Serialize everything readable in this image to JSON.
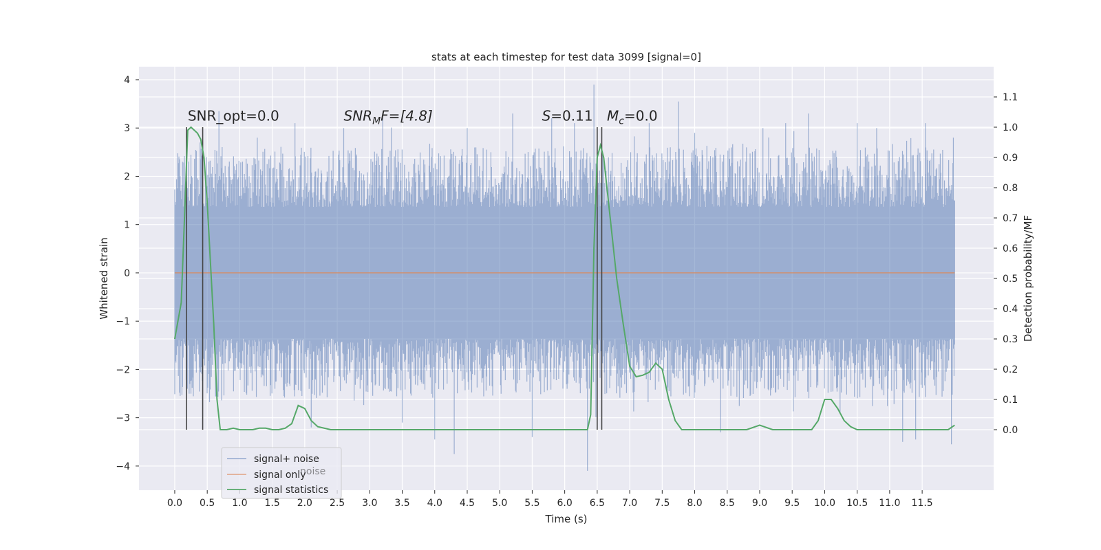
{
  "chart_data": {
    "type": "line",
    "title": "stats at each timestep for test data 3099 [signal=0]",
    "xlabel": "Time (s)",
    "ylabel_left": "Whitened strain",
    "ylabel_right": "Detection probability/MF",
    "xlim": [
      -0.55,
      12.6
    ],
    "ylim_left": [
      -4.5,
      4.27
    ],
    "ylim_right": [
      -0.2,
      1.2
    ],
    "x_ticks": [
      0.0,
      0.5,
      1.0,
      1.5,
      2.0,
      2.5,
      3.0,
      3.5,
      4.0,
      4.5,
      5.0,
      5.5,
      6.0,
      6.5,
      7.0,
      7.5,
      8.0,
      8.5,
      9.0,
      9.5,
      10.0,
      10.5,
      11.0,
      11.5
    ],
    "x_tick_labels": [
      "0.0",
      "0.5",
      "1.0",
      "1.5",
      "2.0",
      "2.5",
      "3.0",
      "3.5",
      "4.0",
      "4.5",
      "5.0",
      "5.5",
      "6.0",
      "6.5",
      "7.0",
      "7.5",
      "8.0",
      "8.5",
      "9.0",
      "9.5",
      "10.0",
      "10.5",
      "11.0",
      "11.5"
    ],
    "y_ticks_left": [
      -4,
      -3,
      -2,
      -1,
      0,
      1,
      2,
      3,
      4
    ],
    "y_tick_labels_left": [
      "−4",
      "−3",
      "−2",
      "−1",
      "0",
      "1",
      "2",
      "3",
      "4"
    ],
    "y_ticks_right": [
      0.0,
      0.1,
      0.2,
      0.3,
      0.4,
      0.5,
      0.6,
      0.7,
      0.8,
      0.9,
      1.0,
      1.1
    ],
    "y_tick_labels_right": [
      "0.0",
      "0.1",
      "0.2",
      "0.3",
      "0.4",
      "0.5",
      "0.6",
      "0.7",
      "0.8",
      "0.9",
      "1.0",
      "1.1"
    ],
    "grid": true,
    "legend_position": "bottom-left",
    "series": [
      {
        "name": "signal+ noise",
        "axis": "left",
        "color": "#4c72b0",
        "style": "noise-band",
        "x_range": [
          0.0,
          12.0
        ],
        "typical_amplitude": 1.3,
        "peaks": [
          {
            "x": 0.39,
            "y": 2.7
          },
          {
            "x": 0.68,
            "y": 3.35
          },
          {
            "x": 1.27,
            "y": 2.8
          },
          {
            "x": 1.85,
            "y": 3.1
          },
          {
            "x": 2.1,
            "y": -3.2
          },
          {
            "x": 2.6,
            "y": 3.0
          },
          {
            "x": 3.2,
            "y": 3.2
          },
          {
            "x": 3.5,
            "y": -3.1
          },
          {
            "x": 4.0,
            "y": -3.45
          },
          {
            "x": 4.3,
            "y": -3.75
          },
          {
            "x": 4.5,
            "y": 3.0
          },
          {
            "x": 5.2,
            "y": 3.3
          },
          {
            "x": 5.5,
            "y": -3.4
          },
          {
            "x": 5.8,
            "y": 3.2
          },
          {
            "x": 6.15,
            "y": 3.1
          },
          {
            "x": 6.35,
            "y": -4.1
          },
          {
            "x": 6.45,
            "y": 3.9
          },
          {
            "x": 7.3,
            "y": 3.1
          },
          {
            "x": 7.75,
            "y": 3.55
          },
          {
            "x": 8.0,
            "y": 2.9
          },
          {
            "x": 8.4,
            "y": -3.3
          },
          {
            "x": 9.05,
            "y": 3.0
          },
          {
            "x": 9.4,
            "y": 3.1
          },
          {
            "x": 9.75,
            "y": 3.3
          },
          {
            "x": 10.5,
            "y": 3.1
          },
          {
            "x": 10.8,
            "y": 3.0
          },
          {
            "x": 11.2,
            "y": -3.5
          },
          {
            "x": 11.4,
            "y": -3.45
          },
          {
            "x": 11.55,
            "y": 3.1
          },
          {
            "x": 11.95,
            "y": -3.55
          },
          {
            "x": 11.98,
            "y": 2.8
          }
        ]
      },
      {
        "name": "signal only",
        "axis": "left",
        "color": "#dd8452",
        "x": [
          0.0,
          12.0
        ],
        "y": [
          0.0,
          0.0
        ]
      },
      {
        "name": "signal statistics",
        "axis": "right",
        "color": "#55a868",
        "x": [
          0.0,
          0.1,
          0.15,
          0.2,
          0.25,
          0.3,
          0.35,
          0.4,
          0.45,
          0.5,
          0.55,
          0.6,
          0.65,
          0.7,
          0.8,
          0.9,
          1.0,
          1.1,
          1.2,
          1.3,
          1.4,
          1.5,
          1.6,
          1.7,
          1.8,
          1.9,
          2.0,
          2.1,
          2.2,
          2.4,
          3.0,
          4.0,
          5.0,
          6.0,
          6.35,
          6.4,
          6.45,
          6.5,
          6.55,
          6.6,
          6.65,
          6.7,
          6.8,
          6.9,
          7.0,
          7.1,
          7.2,
          7.3,
          7.4,
          7.5,
          7.6,
          7.7,
          7.8,
          8.0,
          8.5,
          8.8,
          9.0,
          9.2,
          9.5,
          9.8,
          9.9,
          10.0,
          10.1,
          10.2,
          10.3,
          10.4,
          10.5,
          10.7,
          11.0,
          11.5,
          11.9,
          12.0
        ],
        "y": [
          0.3,
          0.42,
          0.7,
          0.99,
          1.0,
          0.99,
          0.98,
          0.96,
          0.9,
          0.75,
          0.55,
          0.35,
          0.1,
          0.0,
          0.0,
          0.005,
          0.0,
          0.0,
          0.0,
          0.005,
          0.005,
          0.0,
          0.0,
          0.005,
          0.02,
          0.08,
          0.07,
          0.03,
          0.01,
          0.0,
          0.0,
          0.0,
          0.0,
          0.0,
          0.0,
          0.05,
          0.6,
          0.9,
          0.94,
          0.9,
          0.8,
          0.7,
          0.5,
          0.35,
          0.21,
          0.175,
          0.18,
          0.19,
          0.22,
          0.2,
          0.1,
          0.03,
          0.0,
          0.0,
          0.0,
          0.0,
          0.015,
          0.0,
          0.0,
          0.0,
          0.03,
          0.1,
          0.1,
          0.07,
          0.03,
          0.01,
          0.0,
          0.0,
          0.0,
          0.0,
          0.0,
          0.015
        ]
      }
    ],
    "vlines": [
      0.18,
      0.43,
      6.5,
      6.57
    ],
    "annotations": [
      {
        "kind": "plain",
        "text": "SNR_opt=0.0",
        "x": 0.2,
        "y": 3.15
      },
      {
        "kind": "sub",
        "main": "SNR",
        "sub": "M",
        "rest": "F=[4.8]",
        "x": 2.6,
        "y": 3.15
      },
      {
        "kind": "italic",
        "main": "S",
        "rest": "=0.11",
        "x": 5.65,
        "y": 3.15
      },
      {
        "kind": "sub",
        "main": "M",
        "sub": "c",
        "rest": "=0.0",
        "x": 6.65,
        "y": 3.15
      }
    ],
    "legend": [
      {
        "label": "signal+ noise",
        "color": "#4c72b0"
      },
      {
        "label": "signal only",
        "color": "#dd8452"
      },
      {
        "label": "signal statistics",
        "color": "#55a868"
      }
    ],
    "legend_ghost_text": "noise"
  }
}
